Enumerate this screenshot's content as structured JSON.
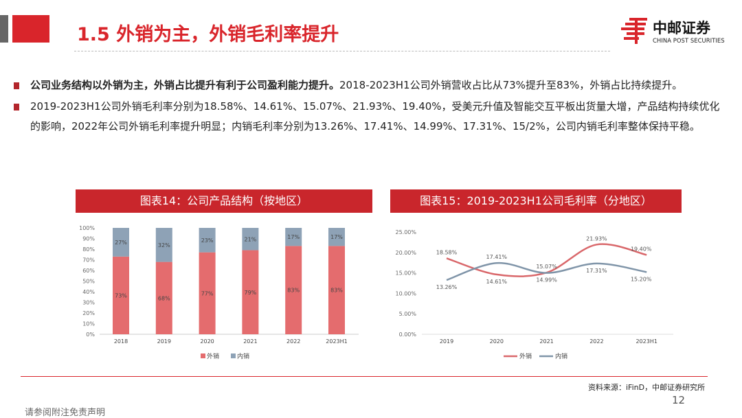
{
  "header": {
    "title": "1.5 外销为主，外销毛利率提升",
    "logo_cn": "中邮证券",
    "logo_en": "CHINA POST SECURITIES"
  },
  "bullets": [
    {
      "bold": "公司业务结构以外销为主，外销占比提升有利于公司盈利能力提升。",
      "text": "2018-2023H1公司外销营收占比从73%提升至83%，外销占比持续提升。"
    },
    {
      "bold": "",
      "text": "2019-2023H1公司外销毛利率分别为18.58%、14.61%、15.07%、21.93%、19.40%，受美元升值及智能交互平板出货量大增，产品结构持续优化的影响，2022年公司外销毛利率提升明显；内销毛利率分别为13.26%、17.41%、14.99%、17.31%、15/2%，公司内销毛利率整体保持平稳。"
    }
  ],
  "chart_data": [
    {
      "type": "bar",
      "stacked": true,
      "title": "图表14：公司产品结构（按地区）",
      "categories": [
        "2018",
        "2019",
        "2020",
        "2021",
        "2022",
        "2023H1"
      ],
      "series": [
        {
          "name": "外销",
          "values": [
            73,
            68,
            77,
            79,
            83,
            83
          ],
          "color": "#e46c6e"
        },
        {
          "name": "内销",
          "values": [
            27,
            32,
            23,
            21,
            17,
            17
          ],
          "color": "#8ea2b6"
        }
      ],
      "ylim": [
        0,
        100
      ],
      "yticks": [
        "0%",
        "10%",
        "20%",
        "30%",
        "40%",
        "50%",
        "60%",
        "70%",
        "80%",
        "90%",
        "100%"
      ],
      "legend": "bottom"
    },
    {
      "type": "line",
      "smooth": true,
      "title": "图表15：2019-2023H1公司毛利率（分地区）",
      "categories": [
        "2019",
        "2020",
        "2021",
        "2022",
        "2023H1"
      ],
      "series": [
        {
          "name": "外销",
          "values": [
            18.58,
            14.61,
            15.07,
            21.93,
            19.4
          ],
          "labels": [
            "18.58%",
            "14.61%",
            "15.07%",
            "21.93%",
            "19.40%"
          ],
          "color": "#d9676a"
        },
        {
          "name": "内销",
          "values": [
            13.26,
            17.41,
            14.99,
            17.31,
            15.2
          ],
          "labels": [
            "13.26%",
            "17.41%",
            "14.99%",
            "17.31%",
            "15.20%"
          ],
          "color": "#7f94a8"
        }
      ],
      "ylim": [
        0,
        25
      ],
      "yticks": [
        "0.00%",
        "5.00%",
        "10.00%",
        "15.00%",
        "20.00%",
        "25.00%"
      ],
      "legend": "bottom"
    }
  ],
  "footer": {
    "source": "资料来源：iFinD，中邮证券研究所",
    "page": "12",
    "disclaimer": "请参阅附注免责声明"
  }
}
